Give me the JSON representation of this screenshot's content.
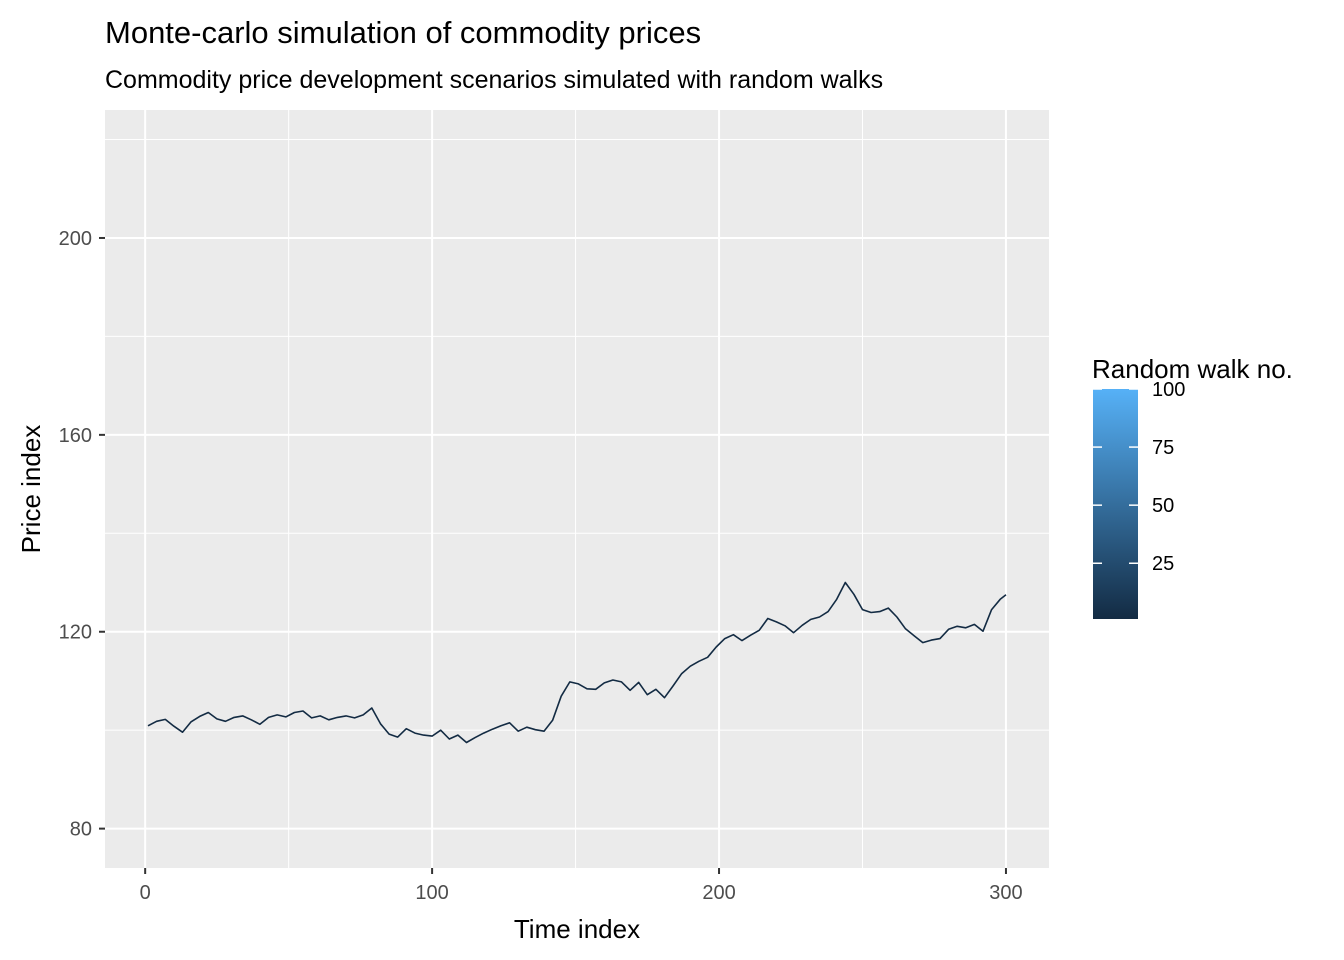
{
  "chart_data": {
    "type": "line",
    "title": "Monte-carlo simulation of commodity prices",
    "subtitle": "Commodity price development scenarios simulated with random walks",
    "xlabel": "Time index",
    "ylabel": "Price index",
    "xlim": [
      -14,
      315
    ],
    "ylim": [
      72,
      226
    ],
    "x_ticks": [
      0,
      100,
      200,
      300
    ],
    "x_tick_labels": [
      "0",
      "100",
      "200",
      "300"
    ],
    "y_ticks": [
      80,
      120,
      160,
      200
    ],
    "y_tick_labels": [
      "80",
      "120",
      "160",
      "200"
    ],
    "grid": true,
    "legend": {
      "title": "Random walk no.",
      "type": "colorbar",
      "position": "right",
      "range": [
        1,
        100
      ],
      "breaks": [
        25,
        50,
        75,
        100
      ],
      "break_labels": [
        "25",
        "50",
        "75",
        "100"
      ],
      "low_color": "#132B43",
      "high_color": "#56B1F7"
    },
    "series": [
      {
        "name": "1",
        "color": "#132B43",
        "x": [
          1,
          4,
          7,
          10,
          13,
          16,
          19,
          22,
          25,
          28,
          31,
          34,
          37,
          40,
          43,
          46,
          49,
          52,
          55,
          58,
          61,
          64,
          67,
          70,
          73,
          76,
          79,
          82,
          85,
          88,
          91,
          94,
          97,
          100,
          103,
          106,
          109,
          112,
          115,
          118,
          121,
          124,
          127,
          130,
          133,
          136,
          139,
          142,
          145,
          148,
          151,
          154,
          157,
          160,
          163,
          166,
          169,
          172,
          175,
          178,
          181,
          184,
          187,
          190,
          193,
          196,
          199,
          202,
          205,
          208,
          211,
          214,
          217,
          220,
          223,
          226,
          229,
          232,
          235,
          238,
          241,
          244,
          247,
          250,
          253,
          256,
          259,
          262,
          265,
          268,
          271,
          274,
          277,
          280,
          283,
          286,
          289,
          292,
          295,
          298,
          300
        ],
        "values": [
          100.9,
          101.8,
          102.2,
          100.8,
          99.6,
          101.7,
          102.8,
          103.6,
          102.3,
          101.8,
          102.6,
          102.9,
          102.1,
          101.2,
          102.6,
          103.1,
          102.7,
          103.6,
          103.9,
          102.5,
          102.9,
          102.1,
          102.6,
          102.9,
          102.5,
          103.1,
          104.5,
          101.3,
          99.2,
          98.6,
          100.3,
          99.4,
          99.0,
          98.8,
          100.0,
          98.2,
          99.0,
          97.5,
          98.5,
          99.4,
          100.2,
          100.9,
          101.5,
          99.8,
          100.6,
          100.1,
          99.8,
          102.0,
          106.9,
          109.8,
          109.4,
          108.4,
          108.3,
          109.6,
          110.2,
          109.8,
          108.1,
          109.7,
          107.2,
          108.3,
          106.6,
          109.0,
          111.5,
          113.0,
          114.0,
          114.8,
          116.9,
          118.6,
          119.4,
          118.2,
          119.3,
          120.3,
          122.7,
          122.0,
          121.2,
          119.8,
          121.3,
          122.5,
          123.0,
          124.1,
          126.6,
          130.0,
          127.6,
          124.5,
          123.9,
          124.1,
          124.8,
          123.0,
          120.6,
          119.2,
          117.8,
          118.3,
          118.6,
          120.5,
          121.1,
          120.8,
          121.5,
          120.1,
          124.5,
          126.6,
          127.5
        ]
      }
    ]
  }
}
